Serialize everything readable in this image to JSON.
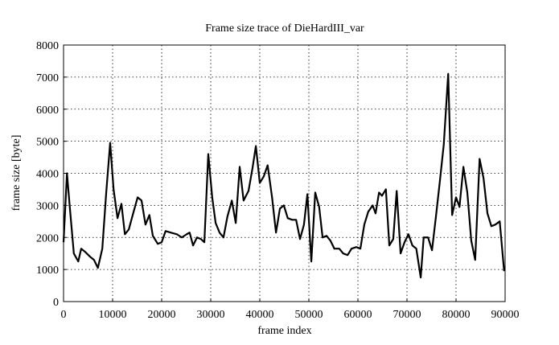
{
  "chart_data": {
    "type": "line",
    "title": "Frame size trace of DieHardIII_var",
    "x_label": "frame index",
    "y_label": "frame size [byte]",
    "color": "#000000",
    "grid": true,
    "xlim": [
      0,
      90000
    ],
    "xticks": [
      0,
      10000,
      20000,
      30000,
      40000,
      50000,
      60000,
      70000,
      80000,
      90000
    ],
    "ylim": [
      0,
      8000
    ],
    "yticks": [
      0,
      1000,
      2000,
      3000,
      4000,
      5000,
      6000,
      7000,
      8000
    ],
    "x": [
      0,
      700,
      1300,
      2100,
      3000,
      3600,
      4400,
      5400,
      6200,
      7000,
      7900,
      8700,
      9500,
      10200,
      11000,
      11800,
      12500,
      13300,
      14100,
      15100,
      15900,
      16700,
      17500,
      18200,
      19200,
      20000,
      20800,
      21900,
      23100,
      24100,
      25100,
      25700,
      26400,
      27200,
      28000,
      28700,
      29500,
      30300,
      31000,
      31800,
      32600,
      33400,
      34300,
      35100,
      35900,
      36700,
      37700,
      38500,
      39200,
      40000,
      40800,
      41600,
      42500,
      43300,
      44100,
      44900,
      45700,
      46600,
      47400,
      48200,
      49000,
      49700,
      50500,
      51300,
      52100,
      52800,
      53600,
      54400,
      55200,
      56200,
      57000,
      57900,
      58700,
      59700,
      60500,
      61300,
      62100,
      63000,
      63600,
      64300,
      64900,
      65700,
      66400,
      67200,
      67900,
      68700,
      69500,
      70300,
      71100,
      71900,
      72800,
      73400,
      74300,
      75100,
      75900,
      76700,
      77500,
      78400,
      79200,
      80000,
      80700,
      81500,
      82300,
      83100,
      83900,
      84800,
      85600,
      86400,
      87200,
      88000,
      88900,
      89800
    ],
    "values": [
      1850,
      4000,
      2900,
      1500,
      1250,
      1650,
      1550,
      1400,
      1300,
      1050,
      1650,
      3400,
      4950,
      3500,
      2600,
      3050,
      2100,
      2250,
      2700,
      3250,
      3150,
      2400,
      2700,
      2050,
      1800,
      1850,
      2200,
      2150,
      2100,
      2000,
      2100,
      2150,
      1750,
      2000,
      1950,
      1850,
      4600,
      3250,
      2450,
      2150,
      2000,
      2650,
      3150,
      2450,
      4200,
      3150,
      3450,
      4150,
      4850,
      3700,
      3900,
      4250,
      3250,
      2150,
      2900,
      3000,
      2600,
      2550,
      2550,
      1950,
      2400,
      3350,
      1250,
      3400,
      2950,
      2000,
      2050,
      1900,
      1650,
      1650,
      1500,
      1450,
      1650,
      1700,
      1650,
      2400,
      2800,
      3000,
      2750,
      3400,
      3300,
      3500,
      1750,
      1950,
      3450,
      1500,
      1850,
      2100,
      1750,
      1650,
      750,
      2000,
      2000,
      1600,
      2650,
      3750,
      4900,
      7100,
      2700,
      3250,
      2950,
      4200,
      3400,
      1900,
      1300,
      4450,
      3850,
      2750,
      2350,
      2400,
      2500,
      950
    ]
  }
}
